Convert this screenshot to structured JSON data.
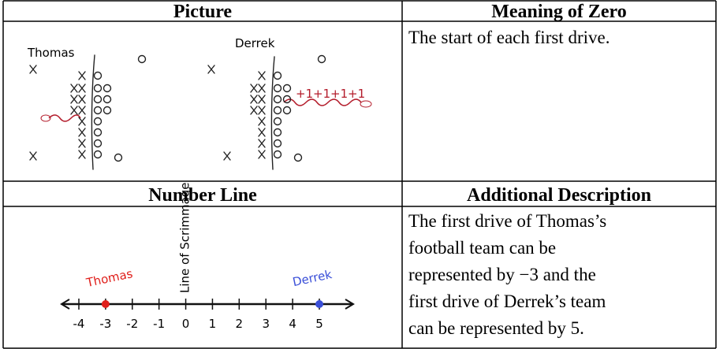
{
  "table": {
    "headers": [
      "Picture",
      "Meaning of Zero",
      "Number Line",
      "Additional Description"
    ],
    "meaning_of_zero": "The start of each first drive.",
    "description_lines": [
      "The first drive of Thomas’s",
      "football team can be",
      "represented by −3 and the",
      "first drive of Derrek’s team",
      "can be represented by 5."
    ]
  },
  "picture": {
    "teams": [
      "Thomas",
      "Derrek"
    ],
    "path_marks": [
      "+1",
      "+1",
      "+1",
      "+1"
    ]
  },
  "number_line": {
    "annotation": "Line of Scrimmage",
    "ticks": [
      -4,
      -3,
      -2,
      -1,
      0,
      1,
      2,
      3,
      4,
      5
    ],
    "points": [
      {
        "label": "Thomas",
        "value": -3,
        "color": "#e0201c"
      },
      {
        "label": "Derrek",
        "value": 5,
        "color": "#3a4fd8"
      }
    ]
  }
}
